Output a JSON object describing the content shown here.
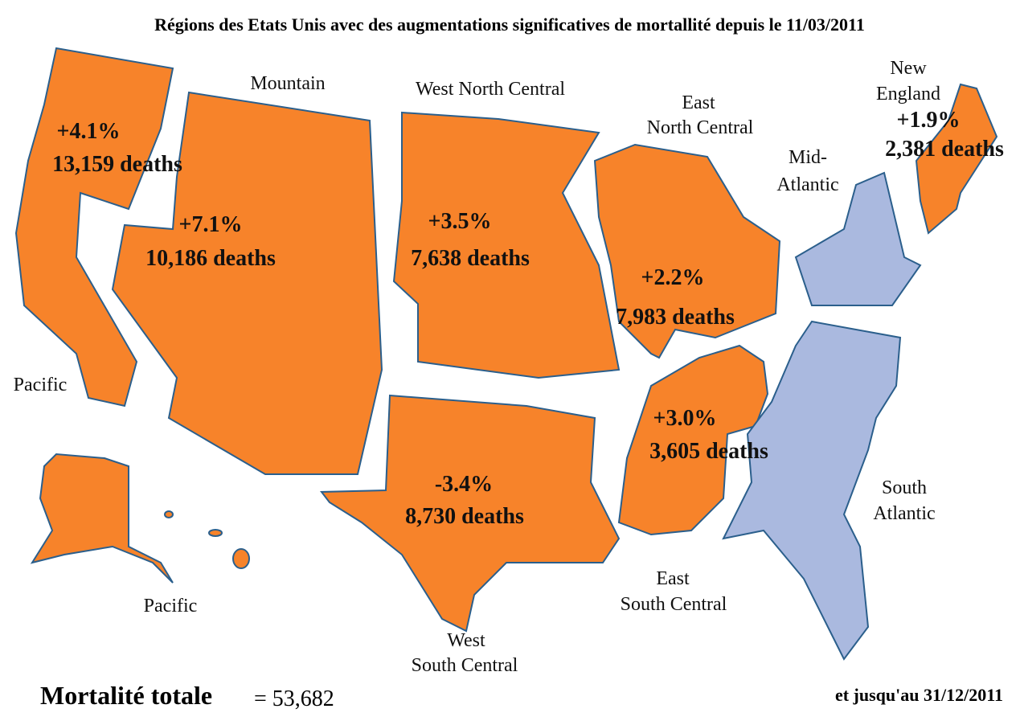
{
  "title": "Régions des Etats Unis avec des augmentations significatives de mortallité depuis le 11/03/2011",
  "regions": [
    {
      "name_lines": [
        "Pacific"
      ],
      "change": "+4.1%",
      "deaths": "13,159 deaths"
    },
    {
      "name_lines": [
        "Mountain"
      ],
      "change": "+7.1%",
      "deaths": "10,186 deaths"
    },
    {
      "name_lines": [
        "West North Central"
      ],
      "change": "+3.5%",
      "deaths": "7,638 deaths"
    },
    {
      "name_lines": [
        "East",
        "North Central"
      ],
      "change": "+2.2%",
      "deaths": "7,983 deaths"
    },
    {
      "name_lines": [
        "New",
        "England"
      ],
      "change": "+1.9%",
      "deaths": "2,381 deaths"
    },
    {
      "name_lines": [
        "Mid-",
        "Atlantic"
      ]
    },
    {
      "name_lines": [
        "West",
        "South Central"
      ],
      "change": "-3.4%",
      "deaths": "8,730 deaths"
    },
    {
      "name_lines": [
        "East",
        "South Central"
      ],
      "change": "+3.0%",
      "deaths": "3,605 deaths"
    },
    {
      "name_lines": [
        "South",
        "Atlantic"
      ]
    }
  ],
  "other_labels": [
    "Pacific"
  ],
  "footer": {
    "total_label": "Mortalité totale",
    "total_value": "= 53,682",
    "until": "et jusqu'au 31/12/2011"
  }
}
